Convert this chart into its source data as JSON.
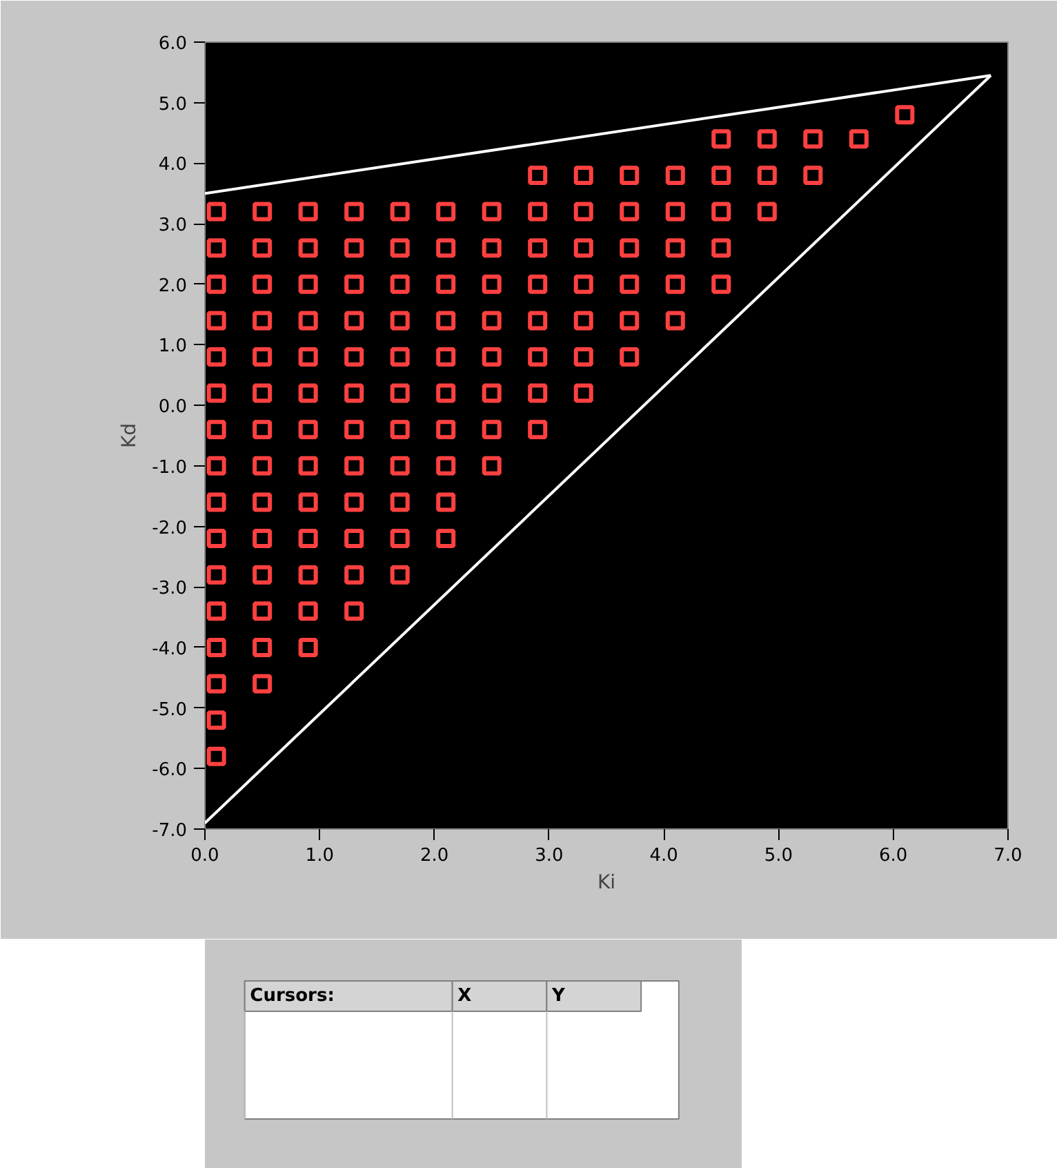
{
  "chart_data": {
    "type": "scatter",
    "xlabel": "Ki",
    "ylabel": "Kd",
    "xlim": [
      0,
      7
    ],
    "ylim": [
      -7,
      6
    ],
    "xticks": [
      {
        "value": 0,
        "label": "0.0"
      },
      {
        "value": 1,
        "label": "1.0"
      },
      {
        "value": 2,
        "label": "2.0"
      },
      {
        "value": 3,
        "label": "3.0"
      },
      {
        "value": 4,
        "label": "4.0"
      },
      {
        "value": 5,
        "label": "5.0"
      },
      {
        "value": 6,
        "label": "6.0"
      },
      {
        "value": 7,
        "label": "7.0"
      }
    ],
    "yticks": [
      {
        "value": -7,
        "label": "-7.0"
      },
      {
        "value": -6,
        "label": "-6.0"
      },
      {
        "value": -5,
        "label": "-5.0"
      },
      {
        "value": -4,
        "label": "-4.0"
      },
      {
        "value": -3,
        "label": "-3.0"
      },
      {
        "value": -2,
        "label": "-2.0"
      },
      {
        "value": -1,
        "label": "-1.0"
      },
      {
        "value": 0,
        "label": "0.0"
      },
      {
        "value": 1,
        "label": "1.0"
      },
      {
        "value": 2,
        "label": "2.0"
      },
      {
        "value": 3,
        "label": "3.0"
      },
      {
        "value": 4,
        "label": "4.0"
      },
      {
        "value": 5,
        "label": "5.0"
      },
      {
        "value": 6,
        "label": "6.0"
      }
    ],
    "grid": false,
    "marker": "square",
    "annotations": [
      "Cursors:",
      "X",
      "Y"
    ],
    "series": [
      {
        "type": "line",
        "marker": "none",
        "color": "#ffffff",
        "x": [
          0,
          6.85
        ],
        "values": [
          3.5,
          5.45
        ]
      },
      {
        "type": "line",
        "marker": "none",
        "color": "#ffffff",
        "x": [
          0,
          6.85
        ],
        "values": [
          -6.9,
          5.45
        ]
      },
      {
        "color": "#ff4040",
        "x": [
          0.1,
          0.1,
          0.1,
          0.1,
          0.1,
          0.1,
          0.1,
          0.1,
          0.1,
          0.1,
          0.1,
          0.1,
          0.1,
          0.1,
          0.1,
          0.1,
          0.5,
          0.5,
          0.5,
          0.5,
          0.5,
          0.5,
          0.5,
          0.5,
          0.5,
          0.5,
          0.5,
          0.5,
          0.5,
          0.5,
          0.9,
          0.9,
          0.9,
          0.9,
          0.9,
          0.9,
          0.9,
          0.9,
          0.9,
          0.9,
          0.9,
          0.9,
          0.9,
          1.3,
          1.3,
          1.3,
          1.3,
          1.3,
          1.3,
          1.3,
          1.3,
          1.3,
          1.3,
          1.3,
          1.3,
          1.7,
          1.7,
          1.7,
          1.7,
          1.7,
          1.7,
          1.7,
          1.7,
          1.7,
          1.7,
          1.7,
          2.1,
          2.1,
          2.1,
          2.1,
          2.1,
          2.1,
          2.1,
          2.1,
          2.1,
          2.1,
          2.5,
          2.5,
          2.5,
          2.5,
          2.5,
          2.5,
          2.5,
          2.5,
          2.9,
          2.9,
          2.9,
          2.9,
          2.9,
          2.9,
          2.9,
          2.9,
          3.3,
          3.3,
          3.3,
          3.3,
          3.3,
          3.3,
          3.3,
          3.7,
          3.7,
          3.7,
          3.7,
          3.7,
          3.7,
          4.1,
          4.1,
          4.1,
          4.1,
          4.1,
          4.5,
          4.5,
          4.5,
          4.5,
          4.5,
          4.9,
          4.9,
          4.9,
          5.3,
          5.3,
          5.7,
          6.1
        ],
        "values": [
          -5.8,
          -5.2,
          -4.6,
          -4.0,
          -3.4,
          -2.8,
          -2.2,
          -1.6,
          -1.0,
          -0.4,
          0.2,
          0.8,
          1.4,
          2.0,
          2.6,
          3.2,
          -4.6,
          -4.0,
          -3.4,
          -2.8,
          -2.2,
          -1.6,
          -1.0,
          -0.4,
          0.2,
          0.8,
          1.4,
          2.0,
          2.6,
          3.2,
          -4.0,
          -3.4,
          -2.8,
          -2.2,
          -1.6,
          -1.0,
          -0.4,
          0.2,
          0.8,
          1.4,
          2.0,
          2.6,
          3.2,
          -3.4,
          -2.8,
          -2.2,
          -1.6,
          -1.0,
          -0.4,
          0.2,
          0.8,
          1.4,
          2.0,
          2.6,
          3.2,
          -2.8,
          -2.2,
          -1.6,
          -1.0,
          -0.4,
          0.2,
          0.8,
          1.4,
          2.0,
          2.6,
          3.2,
          -2.2,
          -1.6,
          -1.0,
          -0.4,
          0.2,
          0.8,
          1.4,
          2.0,
          2.6,
          3.2,
          -1.0,
          -0.4,
          0.2,
          0.8,
          1.4,
          2.0,
          2.6,
          3.2,
          -0.4,
          0.2,
          0.8,
          1.4,
          2.0,
          2.6,
          3.2,
          3.8,
          0.2,
          0.8,
          1.4,
          2.0,
          2.6,
          3.2,
          3.8,
          0.8,
          1.4,
          2.0,
          2.6,
          3.2,
          3.8,
          1.4,
          2.0,
          2.6,
          3.2,
          3.8,
          2.0,
          2.6,
          3.2,
          3.8,
          4.4,
          3.2,
          3.8,
          4.4,
          3.8,
          4.4,
          4.4,
          4.8
        ]
      }
    ]
  }
}
